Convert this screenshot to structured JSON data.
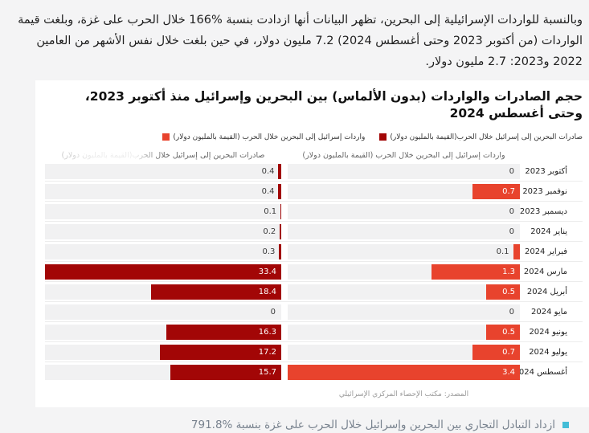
{
  "page": {
    "intro_paragraph": "وبالنسبة للواردات الإسرائيلية إلى البحرين، تظهر البيانات أنها ازدادت بنسبة %166  خلال الحرب على غزة، وبلغت قيمة الواردات (من أكتوبر 2023 وحتى أغسطس 2024) 7.2 مليون دولار، في حين بلغت خلال نفس الأشهر من العامين 2022 و2023: 2.7 مليون دولار.",
    "footer_bullet": "ازداد التبادل التجاري بين البحرين وإسرائيل خلال الحرب على غزة بنسبة %791.8",
    "footer_bullet_color": "#43bdd7",
    "background_color": "#f4f4f5"
  },
  "chart": {
    "title": "حجم الصادرات والواردات (بدون الألماس) بين البحرين وإسرائيل منذ أكتوبر 2023، وحتى أغسطس 2024",
    "legend": [
      {
        "label": "واردات إسرائيل إلى البحرين خلال الحرب (القيمة بالمليون دولار)",
        "color": "#e8432d"
      },
      {
        "label": "صادرات البحرين إلى إسرائيل خلال الحرب(القيمة بالمليون دولار)",
        "color": "#a20606"
      }
    ],
    "col_header_imports": "واردات إسرائيل إلى البحرين خلال الحرب (القيمة بالمليون دولار)",
    "col_header_exports": "صادرات البحرين إلى إسرائيل خلال الحرب(القيمة بالمليون دولار)",
    "source": "المصدر: مكتب الإحصاء المركزي الإسرائيلي"
  },
  "chart_data": {
    "type": "bar",
    "orientation": "horizontal-rtl",
    "grid": false,
    "legend_position": "top-right",
    "categories": [
      "أكتوبر 2023",
      "نوفمبر 2023",
      "ديسمبر 2023",
      "يناير 2024",
      "فبراير 2024",
      "مارس 2024",
      "أبريل 2024",
      "مايو 2024",
      "يونيو 2024",
      "يوليو 2024",
      "أغسطس 2024"
    ],
    "series": [
      {
        "name": "صادرات البحرين إلى إسرائيل خلال الحرب(القيمة بالمليون دولار)",
        "color": "#a20606",
        "axis_max": 33.4,
        "values": [
          0.4,
          0.4,
          0.1,
          0.2,
          0.3,
          33.4,
          18.4,
          0,
          16.3,
          17.2,
          15.7
        ]
      },
      {
        "name": "واردات إسرائيل إلى البحرين خلال الحرب (القيمة بالمليون دولار)",
        "color": "#e8432d",
        "axis_max": 3.4,
        "values": [
          0,
          0.7,
          0,
          0,
          0.1,
          1.3,
          0.5,
          0,
          0.5,
          0.7,
          3.4
        ]
      }
    ],
    "value_unit": "مليون دولار"
  }
}
